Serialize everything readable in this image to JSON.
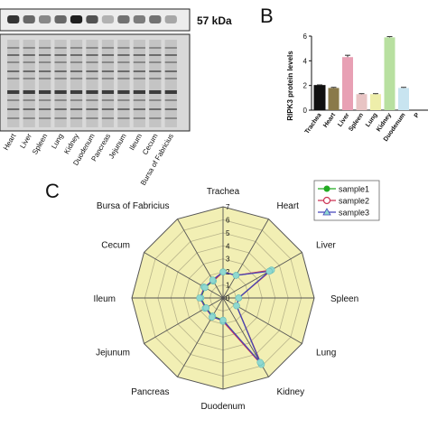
{
  "panel_a": {
    "blot_label": "57 kDa",
    "lane_labels": [
      "Heart",
      "Liver",
      "Spleen",
      "Lung",
      "Kidney",
      "Duodenum",
      "Pancreas",
      "Jejunum",
      "Ileum",
      "Cecum",
      "Bursa of Fabricius"
    ],
    "band_intensity": [
      0.85,
      0.6,
      0.45,
      0.6,
      0.95,
      0.7,
      0.25,
      0.55,
      0.5,
      0.55,
      0.3
    ]
  },
  "chart_data": [
    {
      "type": "bar",
      "panel": "B",
      "ylabel": "RIPK3 protein levels",
      "ylim": [
        0,
        6
      ],
      "yticks": [
        0,
        2,
        4,
        6
      ],
      "categories": [
        "Trachea",
        "Heart",
        "Liver",
        "Spleen",
        "Lung",
        "Kidney",
        "Duodenum",
        "P"
      ],
      "values": [
        2.0,
        1.8,
        4.3,
        1.3,
        1.3,
        5.9,
        1.8,
        null
      ],
      "errors": [
        0.05,
        0.05,
        0.15,
        0.04,
        0.04,
        0.06,
        0.05,
        null
      ],
      "colors": [
        "#111111",
        "#8a7a4a",
        "#e8a0b4",
        "#e8c4c4",
        "#eeeeaa",
        "#b8e0a0",
        "#c8e4f0",
        "#ffffff"
      ]
    },
    {
      "type": "radar",
      "panel": "C",
      "axes": [
        "Trachea",
        "Heart",
        "Liver",
        "Spleen",
        "Lung",
        "Kidney",
        "Duodenum",
        "Pancreas",
        "Jejunum",
        "Ileum",
        "Cecum",
        "Bursa of Fabricius"
      ],
      "rlim": [
        0,
        7
      ],
      "rticks": [
        0,
        1,
        2,
        3,
        4,
        5,
        6,
        7
      ],
      "series": [
        {
          "name": "sample1",
          "values": [
            2.0,
            2.0,
            4.2,
            1.2,
            1.2,
            5.8,
            1.7,
            1.6,
            1.5,
            1.7,
            1.6,
            1.5
          ],
          "color": "#22aa22",
          "marker": "circle-filled"
        },
        {
          "name": "sample2",
          "values": [
            2.0,
            2.0,
            4.3,
            1.2,
            1.2,
            5.9,
            1.8,
            1.6,
            1.6,
            1.7,
            1.7,
            1.5
          ],
          "color": "#cc3355",
          "marker": "circle-open"
        },
        {
          "name": "sample3",
          "values": [
            2.0,
            2.0,
            4.1,
            1.2,
            1.2,
            5.7,
            1.7,
            1.7,
            1.5,
            1.8,
            1.6,
            1.6
          ],
          "color": "#4444bb",
          "marker": "triangle"
        }
      ]
    }
  ],
  "panels": {
    "b_label": "B",
    "c_label": "C"
  }
}
